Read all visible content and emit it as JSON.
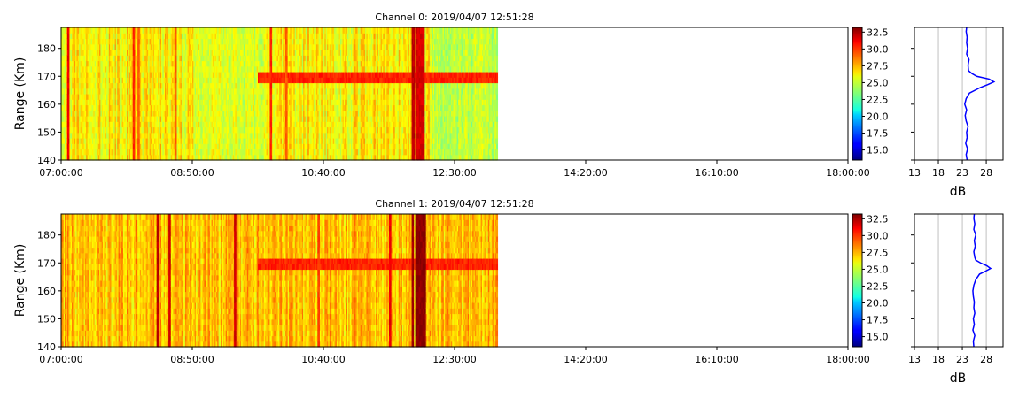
{
  "chart_data": [
    {
      "type": "heatmap",
      "title": "Channel 0: 2019/04/07 12:51:28",
      "xlabel": "",
      "ylabel": "Range (Km)",
      "xlim": [
        "07:00:00",
        "18:00:00"
      ],
      "x_ticks": [
        "07:00:00",
        "08:50:00",
        "10:40:00",
        "12:30:00",
        "14:20:00",
        "16:10:00",
        "18:00:00"
      ],
      "ylim": [
        140,
        187.5
      ],
      "y_ticks": [
        140,
        150,
        160,
        170,
        180
      ],
      "data_end_time": "13:06:00",
      "colorbar": {
        "colormap": "jet",
        "range": [
          13.5,
          33.2
        ],
        "ticks": [
          "15.0",
          "17.5",
          "20.0",
          "22.5",
          "25.0",
          "27.5",
          "30.0",
          "32.5"
        ]
      },
      "echo_band": {
        "range_km": 169.5,
        "start_time": "09:45:00",
        "peak_db": 30.5
      },
      "strong_columns": [
        {
          "start_time": "07:05:00",
          "end_time": "07:06:00",
          "db": 31
        },
        {
          "start_time": "08:00:00",
          "end_time": "08:01:00",
          "db": 30
        },
        {
          "start_time": "08:04:00",
          "end_time": "08:05:00",
          "db": 29
        },
        {
          "start_time": "08:35:00",
          "end_time": "08:36:00",
          "db": 29
        },
        {
          "start_time": "09:55:00",
          "end_time": "09:56:00",
          "db": 30
        },
        {
          "start_time": "10:08:00",
          "end_time": "10:09:00",
          "db": 29
        },
        {
          "start_time": "11:54:00",
          "end_time": "11:56:00",
          "db": 32
        },
        {
          "start_time": "11:58:00",
          "end_time": "12:04:00",
          "db": 31.5
        }
      ],
      "side_profile": {
        "xlabel": "dB",
        "xlim": [
          13,
          31.5
        ],
        "x_ticks": [
          13,
          18,
          23,
          28
        ],
        "x_grid": [
          18,
          23,
          28
        ],
        "range_km": [
          140,
          142,
          144,
          146,
          148,
          150,
          152,
          154,
          156,
          158,
          160,
          162,
          164,
          166,
          167,
          168,
          169,
          170,
          171,
          172,
          174,
          176,
          178,
          180,
          182,
          184,
          186,
          187.5
        ],
        "db": [
          24.0,
          23.8,
          24.1,
          23.7,
          24.0,
          23.9,
          24.2,
          23.8,
          23.6,
          23.9,
          23.5,
          23.8,
          24.5,
          26.8,
          28.3,
          29.6,
          28.6,
          26.0,
          25.0,
          24.3,
          24.2,
          24.4,
          23.9,
          24.1,
          23.9,
          24.0,
          23.8,
          23.9
        ]
      }
    },
    {
      "type": "heatmap",
      "title": "Channel 1: 2019/04/07 12:51:28",
      "xlabel": "",
      "ylabel": "Range (Km)",
      "xlim": [
        "07:00:00",
        "18:00:00"
      ],
      "x_ticks": [
        "07:00:00",
        "08:50:00",
        "10:40:00",
        "12:30:00",
        "14:20:00",
        "16:10:00",
        "18:00:00"
      ],
      "ylim": [
        140,
        187.5
      ],
      "y_ticks": [
        140,
        150,
        160,
        170,
        180
      ],
      "data_end_time": "13:06:00",
      "colorbar": {
        "colormap": "jet",
        "range": [
          13.5,
          33.2
        ],
        "ticks": [
          "15.0",
          "17.5",
          "20.0",
          "22.5",
          "25.0",
          "27.5",
          "30.0",
          "32.5"
        ]
      },
      "echo_band": {
        "range_km": 170,
        "start_time": "09:45:00",
        "peak_db": 30.5
      },
      "strong_columns": [
        {
          "start_time": "08:20:00",
          "end_time": "08:21:00",
          "db": 32
        },
        {
          "start_time": "08:30:00",
          "end_time": "08:31:00",
          "db": 31.5
        },
        {
          "start_time": "09:25:00",
          "end_time": "09:26:00",
          "db": 31.5
        },
        {
          "start_time": "10:35:00",
          "end_time": "10:36:00",
          "db": 29.5
        },
        {
          "start_time": "11:35:00",
          "end_time": "11:36:00",
          "db": 31
        },
        {
          "start_time": "11:54:00",
          "end_time": "11:55:00",
          "db": 32.5
        },
        {
          "start_time": "11:57:00",
          "end_time": "12:05:00",
          "db": 33
        }
      ],
      "side_profile": {
        "xlabel": "dB",
        "xlim": [
          13,
          31.5
        ],
        "x_ticks": [
          13,
          18,
          23,
          28
        ],
        "x_grid": [
          18,
          23,
          28
        ],
        "range_km": [
          140,
          142,
          144,
          146,
          148,
          150,
          152,
          154,
          156,
          158,
          160,
          162,
          164,
          166,
          167,
          168,
          169,
          170,
          171,
          172,
          174,
          176,
          178,
          180,
          182,
          184,
          186,
          187.5
        ],
        "db": [
          25.4,
          25.3,
          25.6,
          25.2,
          25.5,
          25.3,
          25.6,
          25.4,
          25.5,
          25.3,
          25.2,
          25.4,
          25.8,
          26.6,
          27.8,
          28.9,
          28.1,
          26.8,
          25.8,
          25.6,
          25.4,
          25.7,
          25.5,
          25.8,
          25.4,
          25.6,
          25.4,
          25.5
        ]
      }
    }
  ]
}
